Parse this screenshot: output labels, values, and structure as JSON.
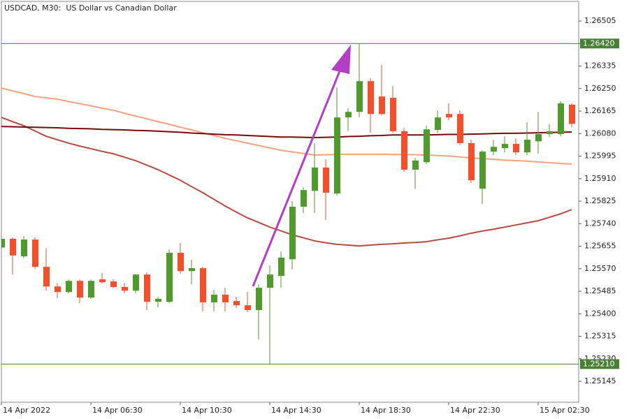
{
  "chart_data": {
    "type": "candlestick",
    "title": "USDCAD, M30:  US Dollar vs Canadian Dollar",
    "categories": [
      "14 Apr 2022",
      null,
      null,
      null,
      null,
      null,
      null,
      null,
      "14 Apr 06:30",
      null,
      null,
      null,
      null,
      null,
      null,
      null,
      "14 Apr 10:30",
      null,
      null,
      null,
      null,
      null,
      null,
      null,
      "14 Apr 14:30",
      null,
      null,
      null,
      null,
      null,
      null,
      null,
      "14 Apr 18:30",
      null,
      null,
      null,
      null,
      null,
      null,
      null,
      "14 Apr 22:30",
      null,
      null,
      null,
      null,
      null,
      null,
      null,
      "15 Apr 02:30",
      null,
      null,
      null
    ],
    "open": [
      1.2565,
      1.25683,
      1.25617,
      1.2568,
      1.25577,
      1.25503,
      1.25482,
      1.25524,
      1.25461,
      1.2553,
      1.25522,
      1.25501,
      1.25487,
      1.25548,
      1.25445,
      1.25445,
      1.2563,
      1.25561,
      1.25572,
      1.25443,
      1.25472,
      1.25448,
      1.25432,
      1.25414,
      1.25498,
      1.25543,
      1.25606,
      1.25804,
      1.25864,
      1.25952,
      1.25854,
      1.26141,
      1.26162,
      1.26278,
      1.2622,
      1.26215,
      1.26089,
      1.25944,
      1.25972,
      1.26094,
      1.26154,
      1.26154,
      1.26044,
      1.25872,
      1.26012,
      1.26025,
      1.26041,
      1.26009,
      1.26051,
      1.26078,
      1.26078,
      1.26189
    ],
    "high": [
      1.25688,
      1.25688,
      1.25693,
      1.25688,
      1.25648,
      1.25516,
      1.2553,
      1.2553,
      1.2553,
      1.25554,
      1.2553,
      1.25516,
      1.25548,
      1.25556,
      1.25464,
      1.25643,
      1.25667,
      1.25604,
      1.25577,
      1.2549,
      1.25498,
      1.25464,
      1.25482,
      1.25511,
      1.25583,
      1.25635,
      1.25825,
      1.25878,
      1.26044,
      1.25983,
      1.26255,
      1.26176,
      1.2642,
      1.26289,
      1.26339,
      1.2626,
      1.26102,
      1.25988,
      1.2611,
      1.26168,
      1.26194,
      1.26168,
      1.26057,
      1.26017,
      1.26057,
      1.2607,
      1.26062,
      1.26123,
      1.26162,
      1.26115,
      1.26202,
      1.26194
    ],
    "low": [
      1.25645,
      1.25548,
      1.2561,
      1.25569,
      1.25487,
      1.25459,
      1.25477,
      1.2544,
      1.25456,
      1.25514,
      1.25496,
      1.25477,
      1.25477,
      1.25414,
      1.25424,
      1.2544,
      1.25551,
      1.25511,
      1.25409,
      1.25409,
      1.25409,
      1.25422,
      1.25406,
      1.25303,
      1.2521,
      1.25498,
      1.25567,
      1.2578,
      1.2578,
      1.25754,
      1.25846,
      1.26089,
      1.26141,
      1.26083,
      1.26149,
      1.26083,
      1.25936,
      1.25872,
      1.25964,
      1.26083,
      1.26131,
      1.26036,
      1.25894,
      1.25814,
      1.25999,
      1.26009,
      1.25999,
      1.25999,
      1.26004,
      1.26067,
      1.2607,
      1.26104
    ],
    "close": [
      1.25683,
      1.2562,
      1.2568,
      1.25577,
      1.25503,
      1.25482,
      1.25524,
      1.25461,
      1.25524,
      1.25519,
      1.25501,
      1.25487,
      1.25548,
      1.25445,
      1.25456,
      1.2563,
      1.25561,
      1.25572,
      1.25443,
      1.25472,
      1.25443,
      1.25432,
      1.25414,
      1.25498,
      1.25548,
      1.25612,
      1.25804,
      1.25867,
      1.25952,
      1.25857,
      1.26141,
      1.26162,
      1.26278,
      1.26154,
      1.26154,
      1.26089,
      1.25944,
      1.25978,
      1.26096,
      1.26141,
      1.26141,
      1.26044,
      1.25904,
      1.26012,
      1.2603,
      1.26041,
      1.26009,
      1.26057,
      1.26078,
      1.26089,
      1.26194,
      1.26117
    ],
    "up_color": "#4f9a2c",
    "down_color": "#f0502c",
    "series": [
      {
        "color": "#f5a27c",
        "values": [
          1.26252,
          1.26241,
          1.26231,
          1.2622,
          1.26215,
          1.2621,
          1.26201,
          1.26193,
          1.26185,
          1.26176,
          1.26168,
          1.26157,
          1.26146,
          1.26136,
          1.26125,
          1.26115,
          1.26104,
          1.26094,
          1.26083,
          1.26073,
          1.26062,
          1.26053,
          1.26044,
          1.26035,
          1.26026,
          1.26017,
          1.26011,
          1.26005,
          1.25999,
          1.26,
          1.26001,
          1.26002,
          1.26002,
          1.26002,
          1.26002,
          1.26001,
          1.26001,
          1.26,
          1.25999,
          1.25997,
          1.25995,
          1.25992,
          1.25988,
          1.25986,
          1.25983,
          1.2598,
          1.25978,
          1.25976,
          1.25973,
          1.2597,
          1.25967,
          1.25965
        ]
      },
      {
        "color": "#b84a40",
        "values": [
          1.26141,
          1.26125,
          1.2611,
          1.2609,
          1.2607,
          1.26057,
          1.26044,
          1.26033,
          1.26023,
          1.26013,
          1.26004,
          1.25991,
          1.25978,
          1.25961,
          1.25944,
          1.25924,
          1.25904,
          1.2588,
          1.25857,
          1.25832,
          1.25807,
          1.25784,
          1.25762,
          1.25745,
          1.25727,
          1.25713,
          1.25698,
          1.25687,
          1.25675,
          1.25668,
          1.25662,
          1.25659,
          1.25656,
          1.25659,
          1.25662,
          1.25664,
          1.25667,
          1.25669,
          1.25672,
          1.25679,
          1.25685,
          1.25694,
          1.25704,
          1.25712,
          1.25719,
          1.25727,
          1.25735,
          1.25743,
          1.25751,
          1.25764,
          1.25777,
          1.25793
        ]
      },
      {
        "color": "#7a0a0a",
        "values": [
          1.26107,
          1.26106,
          1.26105,
          1.26104,
          1.26103,
          1.26102,
          1.261,
          1.26099,
          1.26098,
          1.26096,
          1.26095,
          1.26094,
          1.26092,
          1.26091,
          1.26089,
          1.26087,
          1.26085,
          1.26082,
          1.2608,
          1.26078,
          1.26076,
          1.26075,
          1.26073,
          1.26071,
          1.26069,
          1.26067,
          1.26067,
          1.26066,
          1.26065,
          1.26066,
          1.26067,
          1.26069,
          1.2607,
          1.26072,
          1.26073,
          1.26075,
          1.26075,
          1.26075,
          1.26075,
          1.26076,
          1.26077,
          1.26077,
          1.26078,
          1.26079,
          1.2608,
          1.26081,
          1.26081,
          1.26082,
          1.26083,
          1.26084,
          1.26085,
          1.26086
        ]
      }
    ],
    "levels": [
      {
        "value": 1.2642,
        "label": "1.26420"
      },
      {
        "value": 1.2521,
        "label": "1.25210"
      }
    ],
    "level_color": "#4a7f36",
    "ylim": [
      1.25066,
      1.26579
    ],
    "yticks": [
      {
        "value": 1.25145,
        "label": "1.25145"
      },
      {
        "value": 1.2523,
        "label": "1.25230"
      },
      {
        "value": 1.25315,
        "label": "1.25315"
      },
      {
        "value": 1.254,
        "label": "1.25400"
      },
      {
        "value": 1.25485,
        "label": "1.25485"
      },
      {
        "value": 1.2557,
        "label": "1.25570"
      },
      {
        "value": 1.25655,
        "label": "1.25655"
      },
      {
        "value": 1.2574,
        "label": "1.25740"
      },
      {
        "value": 1.25825,
        "label": "1.25825"
      },
      {
        "value": 1.2591,
        "label": "1.25910"
      },
      {
        "value": 1.25995,
        "label": "1.25995"
      },
      {
        "value": 1.2608,
        "label": "1.26080"
      },
      {
        "value": 1.26165,
        "label": "1.26165"
      },
      {
        "value": 1.2625,
        "label": "1.26250"
      },
      {
        "value": 1.26335,
        "label": "1.26335"
      },
      {
        "value": 1.2642,
        "label": "1.26420"
      },
      {
        "value": 1.26505,
        "label": "1.26505"
      }
    ],
    "grid": false
  }
}
